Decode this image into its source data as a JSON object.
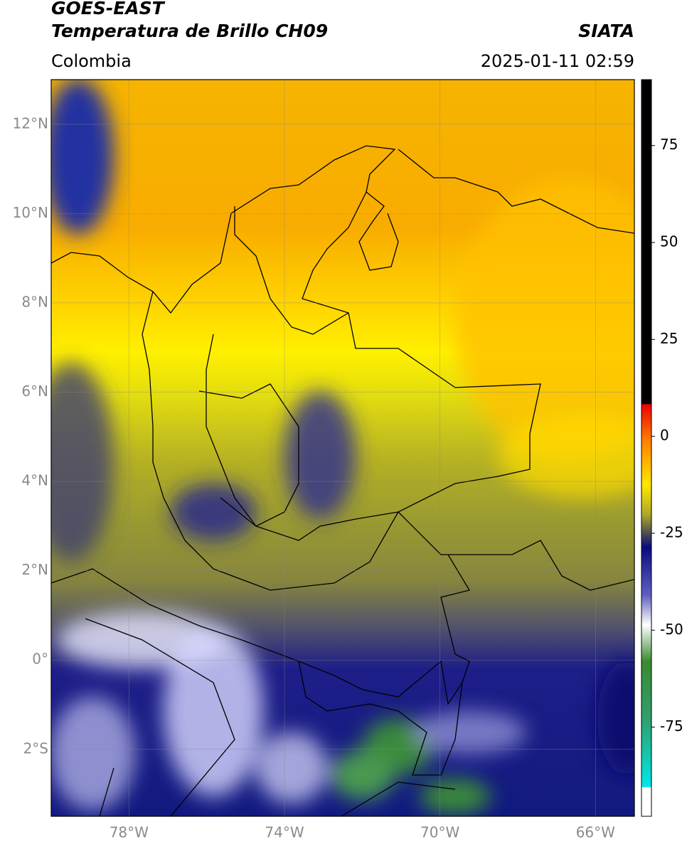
{
  "header": {
    "title_line1": "GOES-EAST",
    "title_line2": "Temperatura de Brillo CH09",
    "source": "SIATA",
    "region": "Colombia",
    "timestamp": "2025-01-11 02:59"
  },
  "map": {
    "lat_lim": [
      -3.5,
      13
    ],
    "lon_lim": [
      -80,
      -65
    ],
    "lat_ticks": [
      {
        "value": 12,
        "label": "12°N"
      },
      {
        "value": 10,
        "label": "10°N"
      },
      {
        "value": 8,
        "label": "8°N"
      },
      {
        "value": 6,
        "label": "6°N"
      },
      {
        "value": 4,
        "label": "4°N"
      },
      {
        "value": 2,
        "label": "2°N"
      },
      {
        "value": 0,
        "label": "0°"
      },
      {
        "value": -2,
        "label": "2°S"
      }
    ],
    "lon_ticks": [
      {
        "value": -78,
        "label": "78°W"
      },
      {
        "value": -74,
        "label": "74°W"
      },
      {
        "value": -70,
        "label": "70°W"
      },
      {
        "value": -66,
        "label": "66°W"
      }
    ]
  },
  "colorbar": {
    "lim": [
      -98,
      92
    ],
    "ticks": [
      75,
      50,
      25,
      0,
      -25,
      -50,
      -75
    ]
  }
}
